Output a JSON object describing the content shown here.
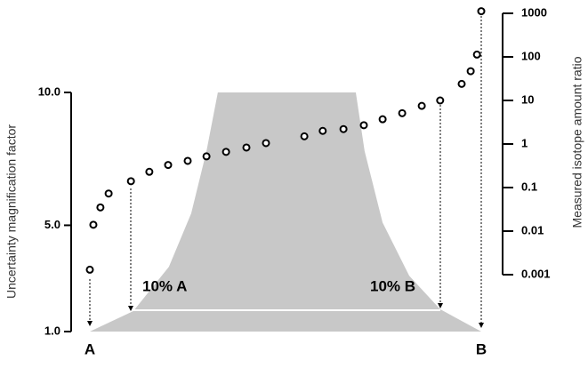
{
  "chart_data": {
    "type": "scatter",
    "y_label": "Uncertainty magnification factor",
    "y2_label": "Measured isotope amount ratio",
    "end_labels": [
      "A",
      "B"
    ],
    "band_labels": [
      "10% A",
      "10% B"
    ],
    "xlim": [
      0,
      100
    ],
    "ylim": [
      1,
      10
    ],
    "yticks": [
      {
        "value": 1,
        "label": "1.0"
      },
      {
        "value": 5,
        "label": "5.0"
      },
      {
        "value": 10,
        "label": "10.0"
      }
    ],
    "y2lim": [
      0.001,
      1000
    ],
    "y2log": true,
    "y2ticks": [
      0.001,
      0.01,
      0.1,
      1,
      10,
      100,
      1000
    ],
    "series": [
      {
        "type": "area",
        "color": "#c8c8c8",
        "x": [
          0,
          11.1,
          20.2,
          25.9,
          29.8,
          32.7,
          67.95,
          70.2,
          74.8,
          81.6,
          89.5,
          100
        ],
        "values": [
          1,
          1.77,
          3.44,
          5.45,
          7.79,
          10,
          10,
          7.79,
          5.1,
          3.1,
          1.84,
          1
        ]
      },
      {
        "type": "scatter",
        "axis": "y2",
        "color": "#000000",
        "x": [
          0,
          0.9,
          2.7,
          4.8,
          10.5,
          15.2,
          20,
          25,
          29.8,
          34.8,
          40,
          45,
          54.8,
          59.5,
          64.8,
          70,
          74.8,
          79.8,
          84.8,
          89.5,
          95,
          97.3,
          98.9,
          100
        ],
        "values": [
          0.0013,
          0.014,
          0.035,
          0.073,
          0.14,
          0.23,
          0.33,
          0.41,
          0.52,
          0.66,
          0.83,
          1.05,
          1.5,
          2.0,
          2.2,
          2.7,
          3.7,
          5.1,
          7.5,
          10,
          24,
          47,
          113,
          1120
        ]
      }
    ]
  }
}
